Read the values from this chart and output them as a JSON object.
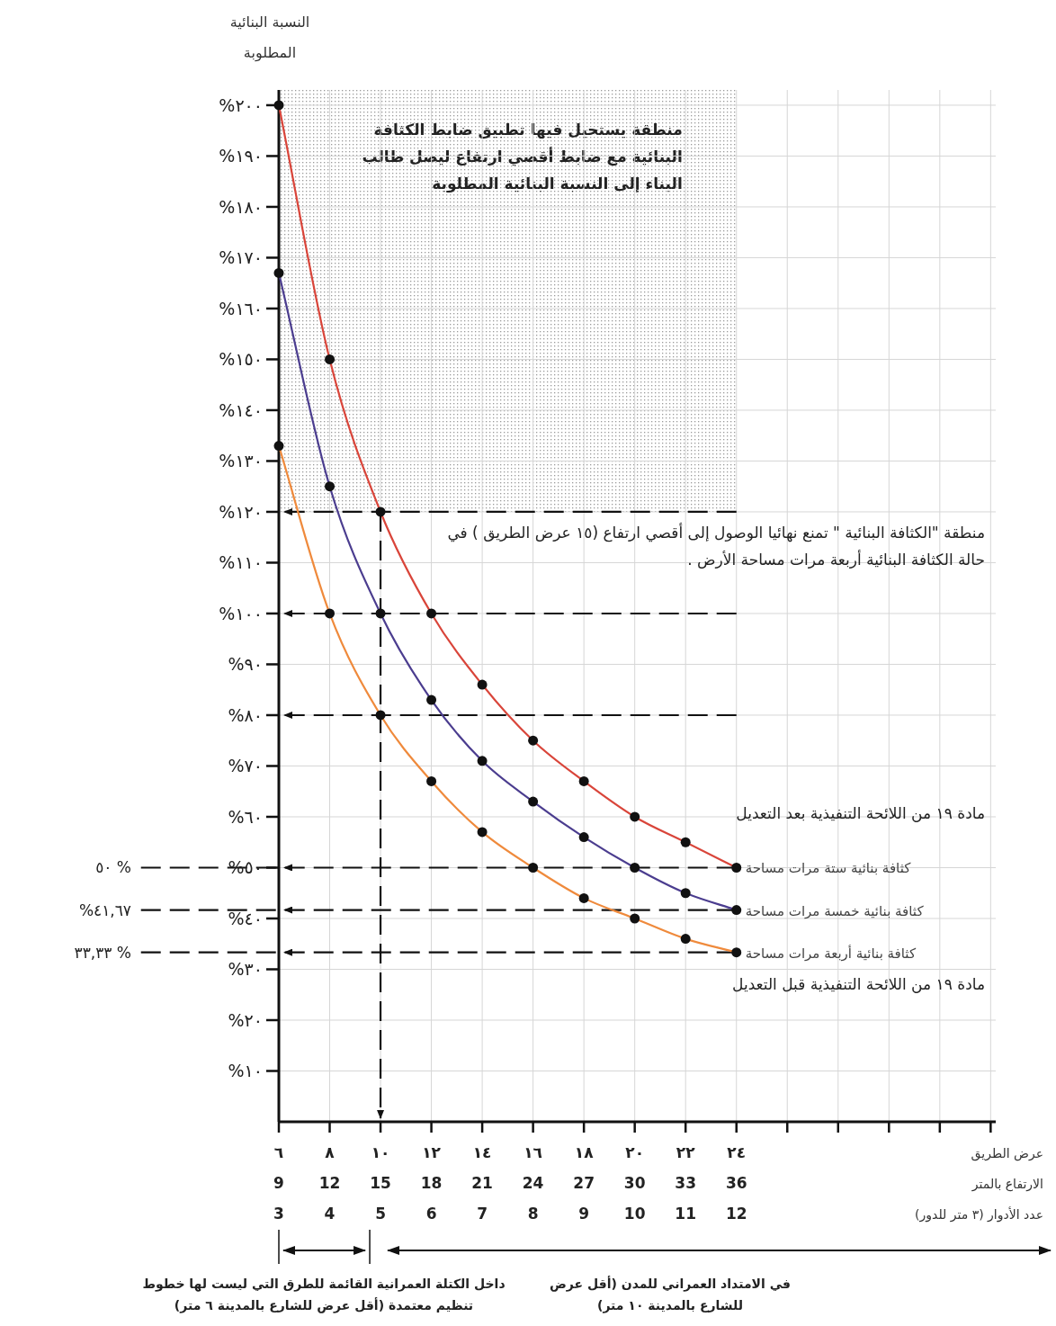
{
  "chart_data": {
    "type": "line",
    "ylabel": "النسبة البنائية\nالمطلوبة",
    "xlabel": "عرض الطريق\nالارتفاع بالمتر\nعدد الأدوار (٣ متر للدور)",
    "categories": [
      "٦\n9\n3",
      "٨\n12\n4",
      "١٠\n15\n5",
      "١٢\n18\n6",
      "١٤\n21\n7",
      "١٦\n24\n8",
      "١٨\n27\n9",
      "٢٠\n30\n10",
      "٢٢\n33\n11",
      "٢٤\n36\n12",
      null,
      null,
      null,
      null,
      null
    ],
    "series": [
      {
        "name": "كثافة بنائية ستة مرات مساحة",
        "color": "#d9453a",
        "values": [
          200,
          150,
          120,
          100,
          86,
          75,
          67,
          60,
          55,
          50,
          null,
          null,
          null,
          null,
          null
        ]
      },
      {
        "name": "كثافة بنائية خمسة مرات مساحة",
        "color": "#4b3d8f",
        "values": [
          167,
          125,
          100,
          83,
          71,
          63,
          56,
          50,
          45,
          41.67,
          null,
          null,
          null,
          null,
          null
        ]
      },
      {
        "name": "كثافة بنائية أربعة مرات مساحة",
        "color": "#ef8a3c",
        "values": [
          133,
          100,
          80,
          67,
          57,
          50,
          44,
          40,
          36,
          33.33,
          null,
          null,
          null,
          null,
          null
        ]
      }
    ],
    "marker": "circle",
    "line_style": "solid",
    "grid": true,
    "ylim": [
      0,
      203
    ],
    "yticks": [
      {
        "value": 10,
        "label": "%١٠"
      },
      {
        "value": 20,
        "label": "%٢٠"
      },
      {
        "value": 30,
        "label": "%٣٠"
      },
      {
        "value": 40,
        "label": "%٤٠"
      },
      {
        "value": 50,
        "label": "%٥٠"
      },
      {
        "value": 60,
        "label": "%٦٠"
      },
      {
        "value": 70,
        "label": "%٧٠"
      },
      {
        "value": 80,
        "label": "%٨٠"
      },
      {
        "value": 90,
        "label": "%٩٠"
      },
      {
        "value": 100,
        "label": "%١٠٠"
      },
      {
        "value": 110,
        "label": "%١١٠"
      },
      {
        "value": 120,
        "label": "%١٢٠"
      },
      {
        "value": 130,
        "label": "%١٣٠"
      },
      {
        "value": 140,
        "label": "%١٤٠"
      },
      {
        "value": 150,
        "label": "%١٥٠"
      },
      {
        "value": 160,
        "label": "%١٦٠"
      },
      {
        "value": 170,
        "label": "%١٧٠"
      },
      {
        "value": 180,
        "label": "%١٨٠"
      },
      {
        "value": 190,
        "label": "%١٩٠"
      },
      {
        "value": 200,
        "label": "%٢٠٠"
      }
    ],
    "bands": [
      {
        "axis": "y",
        "from": 120,
        "to": 203,
        "label": "منطقة يستحيل فيها تطبيق ضابط الكثافة البنائية مع ضابط أقصي ارتفاع ليصل طالب البناء إلى النسبة البنائية المطلوبة",
        "color": "#9a9a9a"
      }
    ],
    "ref_lines": [
      {
        "axis": "y",
        "value": 120,
        "line_style": "dashed"
      },
      {
        "axis": "y",
        "value": 100,
        "line_style": "dashed"
      },
      {
        "axis": "y",
        "value": 80,
        "line_style": "dashed"
      },
      {
        "axis": "y",
        "value": 50,
        "label": "٥٠ %",
        "line_style": "dashed"
      },
      {
        "axis": "y",
        "value": 41.67,
        "label": "%٤١,٦٧",
        "line_style": "dashed"
      },
      {
        "axis": "y",
        "value": 33.33,
        "label": "٣٣,٣٣ %",
        "line_style": "dashed"
      },
      {
        "axis": "x",
        "value": "١٠\n15\n5",
        "line_style": "dashed"
      }
    ],
    "annotations": [
      "منطقة \"الكثافة البنائية \" تمنع نهائيا الوصول إلى أقصي ارتفاع (١٥ عرض الطريق ) في حالة الكثافة البنائية أربعة مرات مساحة الأرض .",
      "مادة ١٩ من اللائحة التنفيذية بعد التعديل",
      "مادة ١٩ من اللائحة التنفيذية قبل التعديل",
      "داخل الكتلة العمرانية القائمة للطرق التي ليست لها خطوط تنظيم معتمدة (أقل عرض للشارع بالمدينة ٦ متر)",
      "في الامتداد العمراني للمدن (أقل عرض للشارع بالمدينة ١٠ متر)"
    ]
  }
}
